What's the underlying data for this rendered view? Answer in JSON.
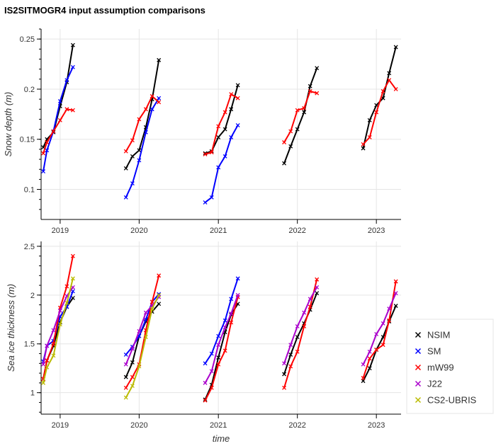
{
  "title": "IS2SITMOGR4 input assumption comparisons",
  "chart_data": [
    {
      "type": "line",
      "ylabel": "Snow depth (m)",
      "xlabel": "",
      "ylim": [
        0.07,
        0.26
      ],
      "yticks": [
        "0.1",
        "0.15",
        "0.2",
        "0.25"
      ],
      "xticks": [
        "2019",
        "2020",
        "2021",
        "2022",
        "2023"
      ],
      "grid": true,
      "series": [
        {
          "name": "NSIM",
          "color": "#000000",
          "segments": [
            [
              [
                "2018-10-15",
                0.142
              ],
              [
                "2018-11-01",
                0.15
              ],
              [
                "2018-12-01",
                0.157
              ],
              [
                "2019-01-01",
                0.183
              ],
              [
                "2019-02-01",
                0.207
              ],
              [
                "2019-03-01",
                0.244
              ]
            ],
            [
              [
                "2019-11-01",
                0.121
              ],
              [
                "2019-12-01",
                0.133
              ],
              [
                "2020-01-01",
                0.139
              ],
              [
                "2020-02-01",
                0.162
              ],
              [
                "2020-03-01",
                0.19
              ],
              [
                "2020-04-01",
                0.229
              ]
            ],
            [
              [
                "2020-11-01",
                0.136
              ],
              [
                "2020-12-01",
                0.138
              ],
              [
                "2021-01-01",
                0.152
              ],
              [
                "2021-02-01",
                0.16
              ],
              [
                "2021-03-01",
                0.18
              ],
              [
                "2021-04-01",
                0.204
              ]
            ],
            [
              [
                "2021-11-01",
                0.126
              ],
              [
                "2021-12-01",
                0.143
              ],
              [
                "2022-01-01",
                0.16
              ],
              [
                "2022-02-01",
                0.177
              ],
              [
                "2022-03-01",
                0.203
              ],
              [
                "2022-04-01",
                0.221
              ]
            ],
            [
              [
                "2022-11-01",
                0.141
              ],
              [
                "2022-12-01",
                0.169
              ],
              [
                "2023-01-01",
                0.184
              ],
              [
                "2023-02-01",
                0.191
              ],
              [
                "2023-03-01",
                0.216
              ],
              [
                "2023-04-01",
                0.242
              ]
            ]
          ]
        },
        {
          "name": "SM",
          "color": "#0000ff",
          "segments": [
            [
              [
                "2018-10-15",
                0.118
              ],
              [
                "2018-11-01",
                0.139
              ],
              [
                "2018-12-01",
                0.158
              ],
              [
                "2019-01-01",
                0.188
              ],
              [
                "2019-02-01",
                0.209
              ],
              [
                "2019-03-01",
                0.222
              ]
            ],
            [
              [
                "2019-11-01",
                0.092
              ],
              [
                "2019-12-01",
                0.106
              ],
              [
                "2020-01-01",
                0.129
              ],
              [
                "2020-02-01",
                0.157
              ],
              [
                "2020-03-01",
                0.18
              ],
              [
                "2020-04-01",
                0.191
              ]
            ],
            [
              [
                "2020-11-01",
                0.087
              ],
              [
                "2020-12-01",
                0.092
              ],
              [
                "2021-01-01",
                0.122
              ],
              [
                "2021-02-01",
                0.133
              ],
              [
                "2021-03-01",
                0.152
              ],
              [
                "2021-04-01",
                0.164
              ]
            ]
          ]
        },
        {
          "name": "mW99",
          "color": "#ff0000",
          "segments": [
            [
              [
                "2018-10-15",
                0.136
              ],
              [
                "2018-11-01",
                0.147
              ],
              [
                "2018-12-01",
                0.158
              ],
              [
                "2019-01-01",
                0.169
              ],
              [
                "2019-02-01",
                0.18
              ],
              [
                "2019-03-01",
                0.179
              ]
            ],
            [
              [
                "2019-11-01",
                0.138
              ],
              [
                "2019-12-01",
                0.149
              ],
              [
                "2020-01-01",
                0.17
              ],
              [
                "2020-02-01",
                0.18
              ],
              [
                "2020-03-01",
                0.193
              ],
              [
                "2020-04-01",
                0.187
              ]
            ],
            [
              [
                "2020-11-01",
                0.135
              ],
              [
                "2020-12-01",
                0.137
              ],
              [
                "2021-01-01",
                0.163
              ],
              [
                "2021-02-01",
                0.177
              ],
              [
                "2021-03-01",
                0.195
              ],
              [
                "2021-04-01",
                0.191
              ]
            ],
            [
              [
                "2021-11-01",
                0.147
              ],
              [
                "2021-12-01",
                0.158
              ],
              [
                "2022-01-01",
                0.179
              ],
              [
                "2022-02-01",
                0.181
              ],
              [
                "2022-03-01",
                0.198
              ],
              [
                "2022-04-01",
                0.196
              ]
            ],
            [
              [
                "2022-11-01",
                0.145
              ],
              [
                "2022-12-01",
                0.152
              ],
              [
                "2023-01-01",
                0.177
              ],
              [
                "2023-02-01",
                0.198
              ],
              [
                "2023-03-01",
                0.209
              ],
              [
                "2023-04-01",
                0.2
              ]
            ]
          ]
        }
      ]
    },
    {
      "type": "line",
      "ylabel": "Sea ice thickness (m)",
      "xlabel": "time",
      "ylim": [
        0.78,
        2.55
      ],
      "yticks": [
        "1",
        "1.5",
        "2",
        "2.5"
      ],
      "xticks": [
        "2019",
        "2020",
        "2021",
        "2022",
        "2023"
      ],
      "grid": true,
      "legend": [
        "NSIM",
        "SM",
        "mW99",
        "J22",
        "CS2-UBRIS"
      ],
      "legend_position": "right",
      "series": [
        {
          "name": "NSIM",
          "color": "#000000",
          "segments": [
            [
              [
                "2018-10-15",
                1.14
              ],
              [
                "2018-11-01",
                1.33
              ],
              [
                "2018-12-01",
                1.48
              ],
              [
                "2019-01-01",
                1.72
              ],
              [
                "2019-02-01",
                1.88
              ],
              [
                "2019-03-01",
                1.97
              ]
            ],
            [
              [
                "2019-11-01",
                1.16
              ],
              [
                "2019-12-01",
                1.31
              ],
              [
                "2020-01-01",
                1.58
              ],
              [
                "2020-02-01",
                1.73
              ],
              [
                "2020-03-01",
                1.83
              ],
              [
                "2020-04-01",
                1.91
              ]
            ],
            [
              [
                "2020-11-01",
                0.93
              ],
              [
                "2020-12-01",
                1.08
              ],
              [
                "2021-01-01",
                1.36
              ],
              [
                "2021-02-01",
                1.62
              ],
              [
                "2021-03-01",
                1.8
              ],
              [
                "2021-04-01",
                1.91
              ]
            ],
            [
              [
                "2021-11-01",
                1.19
              ],
              [
                "2021-12-01",
                1.39
              ],
              [
                "2022-01-01",
                1.57
              ],
              [
                "2022-02-01",
                1.71
              ],
              [
                "2022-03-01",
                1.85
              ],
              [
                "2022-04-01",
                2.02
              ]
            ],
            [
              [
                "2022-11-01",
                1.12
              ],
              [
                "2022-12-01",
                1.25
              ],
              [
                "2023-01-01",
                1.44
              ],
              [
                "2023-02-01",
                1.57
              ],
              [
                "2023-03-01",
                1.73
              ],
              [
                "2023-04-01",
                1.89
              ]
            ]
          ]
        },
        {
          "name": "SM",
          "color": "#0000ff",
          "segments": [
            [
              [
                "2018-10-15",
                1.32
              ],
              [
                "2018-11-01",
                1.48
              ],
              [
                "2018-12-01",
                1.53
              ],
              [
                "2019-01-01",
                1.78
              ],
              [
                "2019-02-01",
                1.88
              ],
              [
                "2019-03-01",
                2.04
              ]
            ],
            [
              [
                "2019-11-01",
                1.39
              ],
              [
                "2019-12-01",
                1.47
              ],
              [
                "2020-01-01",
                1.58
              ],
              [
                "2020-02-01",
                1.75
              ],
              [
                "2020-03-01",
                1.93
              ],
              [
                "2020-04-01",
                2.01
              ]
            ],
            [
              [
                "2020-11-01",
                1.3
              ],
              [
                "2020-12-01",
                1.4
              ],
              [
                "2021-01-01",
                1.58
              ],
              [
                "2021-02-01",
                1.74
              ],
              [
                "2021-03-01",
                1.96
              ],
              [
                "2021-04-01",
                2.17
              ]
            ]
          ]
        },
        {
          "name": "mW99",
          "color": "#ff0000",
          "segments": [
            [
              [
                "2018-10-15",
                1.14
              ],
              [
                "2018-11-01",
                1.33
              ],
              [
                "2018-12-01",
                1.5
              ],
              [
                "2019-01-01",
                1.87
              ],
              [
                "2019-02-01",
                2.09
              ],
              [
                "2019-03-01",
                2.4
              ]
            ],
            [
              [
                "2019-11-01",
                1.05
              ],
              [
                "2019-12-01",
                1.16
              ],
              [
                "2020-01-01",
                1.29
              ],
              [
                "2020-02-01",
                1.64
              ],
              [
                "2020-03-01",
                1.93
              ],
              [
                "2020-04-01",
                2.2
              ]
            ],
            [
              [
                "2020-11-01",
                0.92
              ],
              [
                "2020-12-01",
                1.05
              ],
              [
                "2021-01-01",
                1.29
              ],
              [
                "2021-02-01",
                1.43
              ],
              [
                "2021-03-01",
                1.72
              ],
              [
                "2021-04-01",
                1.98
              ]
            ],
            [
              [
                "2021-11-01",
                1.05
              ],
              [
                "2021-12-01",
                1.27
              ],
              [
                "2022-01-01",
                1.42
              ],
              [
                "2022-02-01",
                1.68
              ],
              [
                "2022-03-01",
                1.88
              ],
              [
                "2022-04-01",
                2.16
              ]
            ],
            [
              [
                "2022-11-01",
                1.15
              ],
              [
                "2022-12-01",
                1.35
              ],
              [
                "2023-01-01",
                1.44
              ],
              [
                "2023-02-01",
                1.49
              ],
              [
                "2023-03-01",
                1.74
              ],
              [
                "2023-04-01",
                2.14
              ]
            ]
          ]
        },
        {
          "name": "J22",
          "color": "#aa00cc",
          "segments": [
            [
              [
                "2018-10-15",
                1.29
              ],
              [
                "2018-11-01",
                1.48
              ],
              [
                "2018-12-01",
                1.64
              ],
              [
                "2019-01-01",
                1.84
              ],
              [
                "2019-02-01",
                1.99
              ],
              [
                "2019-03-01",
                2.08
              ]
            ],
            [
              [
                "2019-11-01",
                1.29
              ],
              [
                "2019-12-01",
                1.45
              ],
              [
                "2020-01-01",
                1.63
              ],
              [
                "2020-02-01",
                1.82
              ],
              [
                "2020-03-01",
                1.89
              ],
              [
                "2020-04-01",
                1.98
              ]
            ],
            [
              [
                "2020-11-01",
                1.1
              ],
              [
                "2020-12-01",
                1.22
              ],
              [
                "2021-01-01",
                1.49
              ],
              [
                "2021-02-01",
                1.67
              ],
              [
                "2021-03-01",
                1.81
              ],
              [
                "2021-04-01",
                2.0
              ]
            ],
            [
              [
                "2021-11-01",
                1.3
              ],
              [
                "2021-12-01",
                1.49
              ],
              [
                "2022-01-01",
                1.68
              ],
              [
                "2022-02-01",
                1.82
              ],
              [
                "2022-03-01",
                1.96
              ],
              [
                "2022-04-01",
                2.08
              ]
            ],
            [
              [
                "2022-11-01",
                1.29
              ],
              [
                "2022-12-01",
                1.42
              ],
              [
                "2023-01-01",
                1.6
              ],
              [
                "2023-02-01",
                1.71
              ],
              [
                "2023-03-01",
                1.86
              ],
              [
                "2023-04-01",
                2.02
              ]
            ]
          ]
        },
        {
          "name": "CS2-UBRIS",
          "color": "#bbbb00",
          "segments": [
            [
              [
                "2018-10-15",
                1.1
              ],
              [
                "2018-11-01",
                1.26
              ],
              [
                "2018-12-01",
                1.38
              ],
              [
                "2019-01-01",
                1.7
              ],
              [
                "2019-02-01",
                1.92
              ],
              [
                "2019-03-01",
                2.17
              ]
            ],
            [
              [
                "2019-11-01",
                0.95
              ],
              [
                "2019-12-01",
                1.07
              ],
              [
                "2020-01-01",
                1.27
              ],
              [
                "2020-02-01",
                1.57
              ],
              [
                "2020-03-01",
                1.86
              ],
              [
                "2020-04-01",
                2.0
              ]
            ]
          ]
        }
      ]
    }
  ]
}
